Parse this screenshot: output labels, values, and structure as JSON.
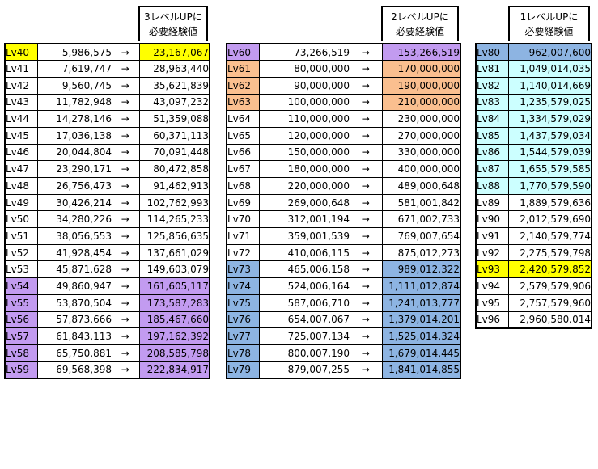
{
  "colors": {
    "yellow": "#ffff00",
    "purple": "#c29bf0",
    "orange": "#fabf8f",
    "blue": "#8db4e2",
    "cyan": "#ccffff",
    "white": "#ffffff"
  },
  "tables": [
    {
      "header": [
        "3レベルUPに",
        "必要経験値"
      ],
      "rows": [
        {
          "lv": "Lv40",
          "cur": "5,986,575",
          "arrow": "→",
          "next": "23,167,067",
          "lvColor": "yellow",
          "nxColor": "yellow"
        },
        {
          "lv": "Lv41",
          "cur": "7,619,747",
          "arrow": "→",
          "next": "28,963,440",
          "lvColor": "white",
          "nxColor": "white"
        },
        {
          "lv": "Lv42",
          "cur": "9,560,745",
          "arrow": "→",
          "next": "35,621,839",
          "lvColor": "white",
          "nxColor": "white"
        },
        {
          "lv": "Lv43",
          "cur": "11,782,948",
          "arrow": "→",
          "next": "43,097,232",
          "lvColor": "white",
          "nxColor": "white"
        },
        {
          "lv": "Lv44",
          "cur": "14,278,146",
          "arrow": "→",
          "next": "51,359,088",
          "lvColor": "white",
          "nxColor": "white"
        },
        {
          "lv": "Lv45",
          "cur": "17,036,138",
          "arrow": "→",
          "next": "60,371,113",
          "lvColor": "white",
          "nxColor": "white"
        },
        {
          "lv": "Lv46",
          "cur": "20,044,804",
          "arrow": "→",
          "next": "70,091,448",
          "lvColor": "white",
          "nxColor": "white"
        },
        {
          "lv": "Lv47",
          "cur": "23,290,171",
          "arrow": "→",
          "next": "80,472,858",
          "lvColor": "white",
          "nxColor": "white"
        },
        {
          "lv": "Lv48",
          "cur": "26,756,473",
          "arrow": "→",
          "next": "91,462,913",
          "lvColor": "white",
          "nxColor": "white"
        },
        {
          "lv": "Lv49",
          "cur": "30,426,214",
          "arrow": "→",
          "next": "102,762,993",
          "lvColor": "white",
          "nxColor": "white"
        },
        {
          "lv": "Lv50",
          "cur": "34,280,226",
          "arrow": "→",
          "next": "114,265,233",
          "lvColor": "white",
          "nxColor": "white"
        },
        {
          "lv": "Lv51",
          "cur": "38,056,553",
          "arrow": "→",
          "next": "125,856,635",
          "lvColor": "white",
          "nxColor": "white"
        },
        {
          "lv": "Lv52",
          "cur": "41,928,454",
          "arrow": "→",
          "next": "137,661,029",
          "lvColor": "white",
          "nxColor": "white"
        },
        {
          "lv": "Lv53",
          "cur": "45,871,628",
          "arrow": "→",
          "next": "149,603,079",
          "lvColor": "white",
          "nxColor": "white"
        },
        {
          "lv": "Lv54",
          "cur": "49,860,947",
          "arrow": "→",
          "next": "161,605,117",
          "lvColor": "purple",
          "nxColor": "purple"
        },
        {
          "lv": "Lv55",
          "cur": "53,870,504",
          "arrow": "→",
          "next": "173,587,283",
          "lvColor": "purple",
          "nxColor": "purple"
        },
        {
          "lv": "Lv56",
          "cur": "57,873,666",
          "arrow": "→",
          "next": "185,467,660",
          "lvColor": "purple",
          "nxColor": "purple"
        },
        {
          "lv": "Lv57",
          "cur": "61,843,113",
          "arrow": "→",
          "next": "197,162,392",
          "lvColor": "purple",
          "nxColor": "purple"
        },
        {
          "lv": "Lv58",
          "cur": "65,750,881",
          "arrow": "→",
          "next": "208,585,798",
          "lvColor": "purple",
          "nxColor": "purple"
        },
        {
          "lv": "Lv59",
          "cur": "69,568,398",
          "arrow": "→",
          "next": "222,834,917",
          "lvColor": "purple",
          "nxColor": "purple"
        }
      ]
    },
    {
      "header": [
        "2レベルUPに",
        "必要経験値"
      ],
      "rows": [
        {
          "lv": "Lv60",
          "cur": "73,266,519",
          "arrow": "→",
          "next": "153,266,519",
          "lvColor": "purple",
          "nxColor": "purple"
        },
        {
          "lv": "Lv61",
          "cur": "80,000,000",
          "arrow": "→",
          "next": "170,000,000",
          "lvColor": "orange",
          "nxColor": "orange"
        },
        {
          "lv": "Lv62",
          "cur": "90,000,000",
          "arrow": "→",
          "next": "190,000,000",
          "lvColor": "orange",
          "nxColor": "orange"
        },
        {
          "lv": "Lv63",
          "cur": "100,000,000",
          "arrow": "→",
          "next": "210,000,000",
          "lvColor": "orange",
          "nxColor": "orange"
        },
        {
          "lv": "Lv64",
          "cur": "110,000,000",
          "arrow": "→",
          "next": "230,000,000",
          "lvColor": "white",
          "nxColor": "white"
        },
        {
          "lv": "Lv65",
          "cur": "120,000,000",
          "arrow": "→",
          "next": "270,000,000",
          "lvColor": "white",
          "nxColor": "white"
        },
        {
          "lv": "Lv66",
          "cur": "150,000,000",
          "arrow": "→",
          "next": "330,000,000",
          "lvColor": "white",
          "nxColor": "white"
        },
        {
          "lv": "Lv67",
          "cur": "180,000,000",
          "arrow": "→",
          "next": "400,000,000",
          "lvColor": "white",
          "nxColor": "white"
        },
        {
          "lv": "Lv68",
          "cur": "220,000,000",
          "arrow": "→",
          "next": "489,000,648",
          "lvColor": "white",
          "nxColor": "white"
        },
        {
          "lv": "Lv69",
          "cur": "269,000,648",
          "arrow": "→",
          "next": "581,001,842",
          "lvColor": "white",
          "nxColor": "white"
        },
        {
          "lv": "Lv70",
          "cur": "312,001,194",
          "arrow": "→",
          "next": "671,002,733",
          "lvColor": "white",
          "nxColor": "white"
        },
        {
          "lv": "Lv71",
          "cur": "359,001,539",
          "arrow": "→",
          "next": "769,007,654",
          "lvColor": "white",
          "nxColor": "white"
        },
        {
          "lv": "Lv72",
          "cur": "410,006,115",
          "arrow": "→",
          "next": "875,012,273",
          "lvColor": "white",
          "nxColor": "white"
        },
        {
          "lv": "Lv73",
          "cur": "465,006,158",
          "arrow": "→",
          "next": "989,012,322",
          "lvColor": "blue",
          "nxColor": "blue"
        },
        {
          "lv": "Lv74",
          "cur": "524,006,164",
          "arrow": "→",
          "next": "1,111,012,874",
          "lvColor": "blue",
          "nxColor": "blue"
        },
        {
          "lv": "Lv75",
          "cur": "587,006,710",
          "arrow": "→",
          "next": "1,241,013,777",
          "lvColor": "blue",
          "nxColor": "blue"
        },
        {
          "lv": "Lv76",
          "cur": "654,007,067",
          "arrow": "→",
          "next": "1,379,014,201",
          "lvColor": "blue",
          "nxColor": "blue"
        },
        {
          "lv": "Lv77",
          "cur": "725,007,134",
          "arrow": "→",
          "next": "1,525,014,324",
          "lvColor": "blue",
          "nxColor": "blue"
        },
        {
          "lv": "Lv78",
          "cur": "800,007,190",
          "arrow": "→",
          "next": "1,679,014,445",
          "lvColor": "blue",
          "nxColor": "blue"
        },
        {
          "lv": "Lv79",
          "cur": "879,007,255",
          "arrow": "→",
          "next": "1,841,014,855",
          "lvColor": "blue",
          "nxColor": "blue"
        }
      ]
    },
    {
      "header": [
        "1レベルUPに",
        "必要経験値"
      ],
      "rows": [
        {
          "lv": "Lv80",
          "value": "962,007,600",
          "lvColor": "blue",
          "vColor": "blue"
        },
        {
          "lv": "Lv81",
          "value": "1,049,014,035",
          "lvColor": "cyan",
          "vColor": "cyan"
        },
        {
          "lv": "Lv82",
          "value": "1,140,014,669",
          "lvColor": "cyan",
          "vColor": "cyan"
        },
        {
          "lv": "Lv83",
          "value": "1,235,579,025",
          "lvColor": "cyan",
          "vColor": "cyan"
        },
        {
          "lv": "Lv84",
          "value": "1,334,579,029",
          "lvColor": "cyan",
          "vColor": "cyan"
        },
        {
          "lv": "Lv85",
          "value": "1,437,579,034",
          "lvColor": "cyan",
          "vColor": "cyan"
        },
        {
          "lv": "Lv86",
          "value": "1,544,579,039",
          "lvColor": "cyan",
          "vColor": "cyan"
        },
        {
          "lv": "Lv87",
          "value": "1,655,579,585",
          "lvColor": "cyan",
          "vColor": "cyan"
        },
        {
          "lv": "Lv88",
          "value": "1,770,579,590",
          "lvColor": "cyan",
          "vColor": "cyan"
        },
        {
          "lv": "Lv89",
          "value": "1,889,579,636",
          "lvColor": "white",
          "vColor": "white"
        },
        {
          "lv": "Lv90",
          "value": "2,012,579,690",
          "lvColor": "white",
          "vColor": "white"
        },
        {
          "lv": "Lv91",
          "value": "2,140,579,774",
          "lvColor": "white",
          "vColor": "white"
        },
        {
          "lv": "Lv92",
          "value": "2,275,579,798",
          "lvColor": "white",
          "vColor": "white"
        },
        {
          "lv": "Lv93",
          "value": "2,420,579,852",
          "lvColor": "yellow",
          "vColor": "yellow"
        },
        {
          "lv": "Lv94",
          "value": "2,579,579,906",
          "lvColor": "white",
          "vColor": "white"
        },
        {
          "lv": "Lv95",
          "value": "2,757,579,960",
          "lvColor": "white",
          "vColor": "white"
        },
        {
          "lv": "Lv96",
          "value": "2,960,580,014",
          "lvColor": "white",
          "vColor": "white"
        }
      ]
    }
  ]
}
